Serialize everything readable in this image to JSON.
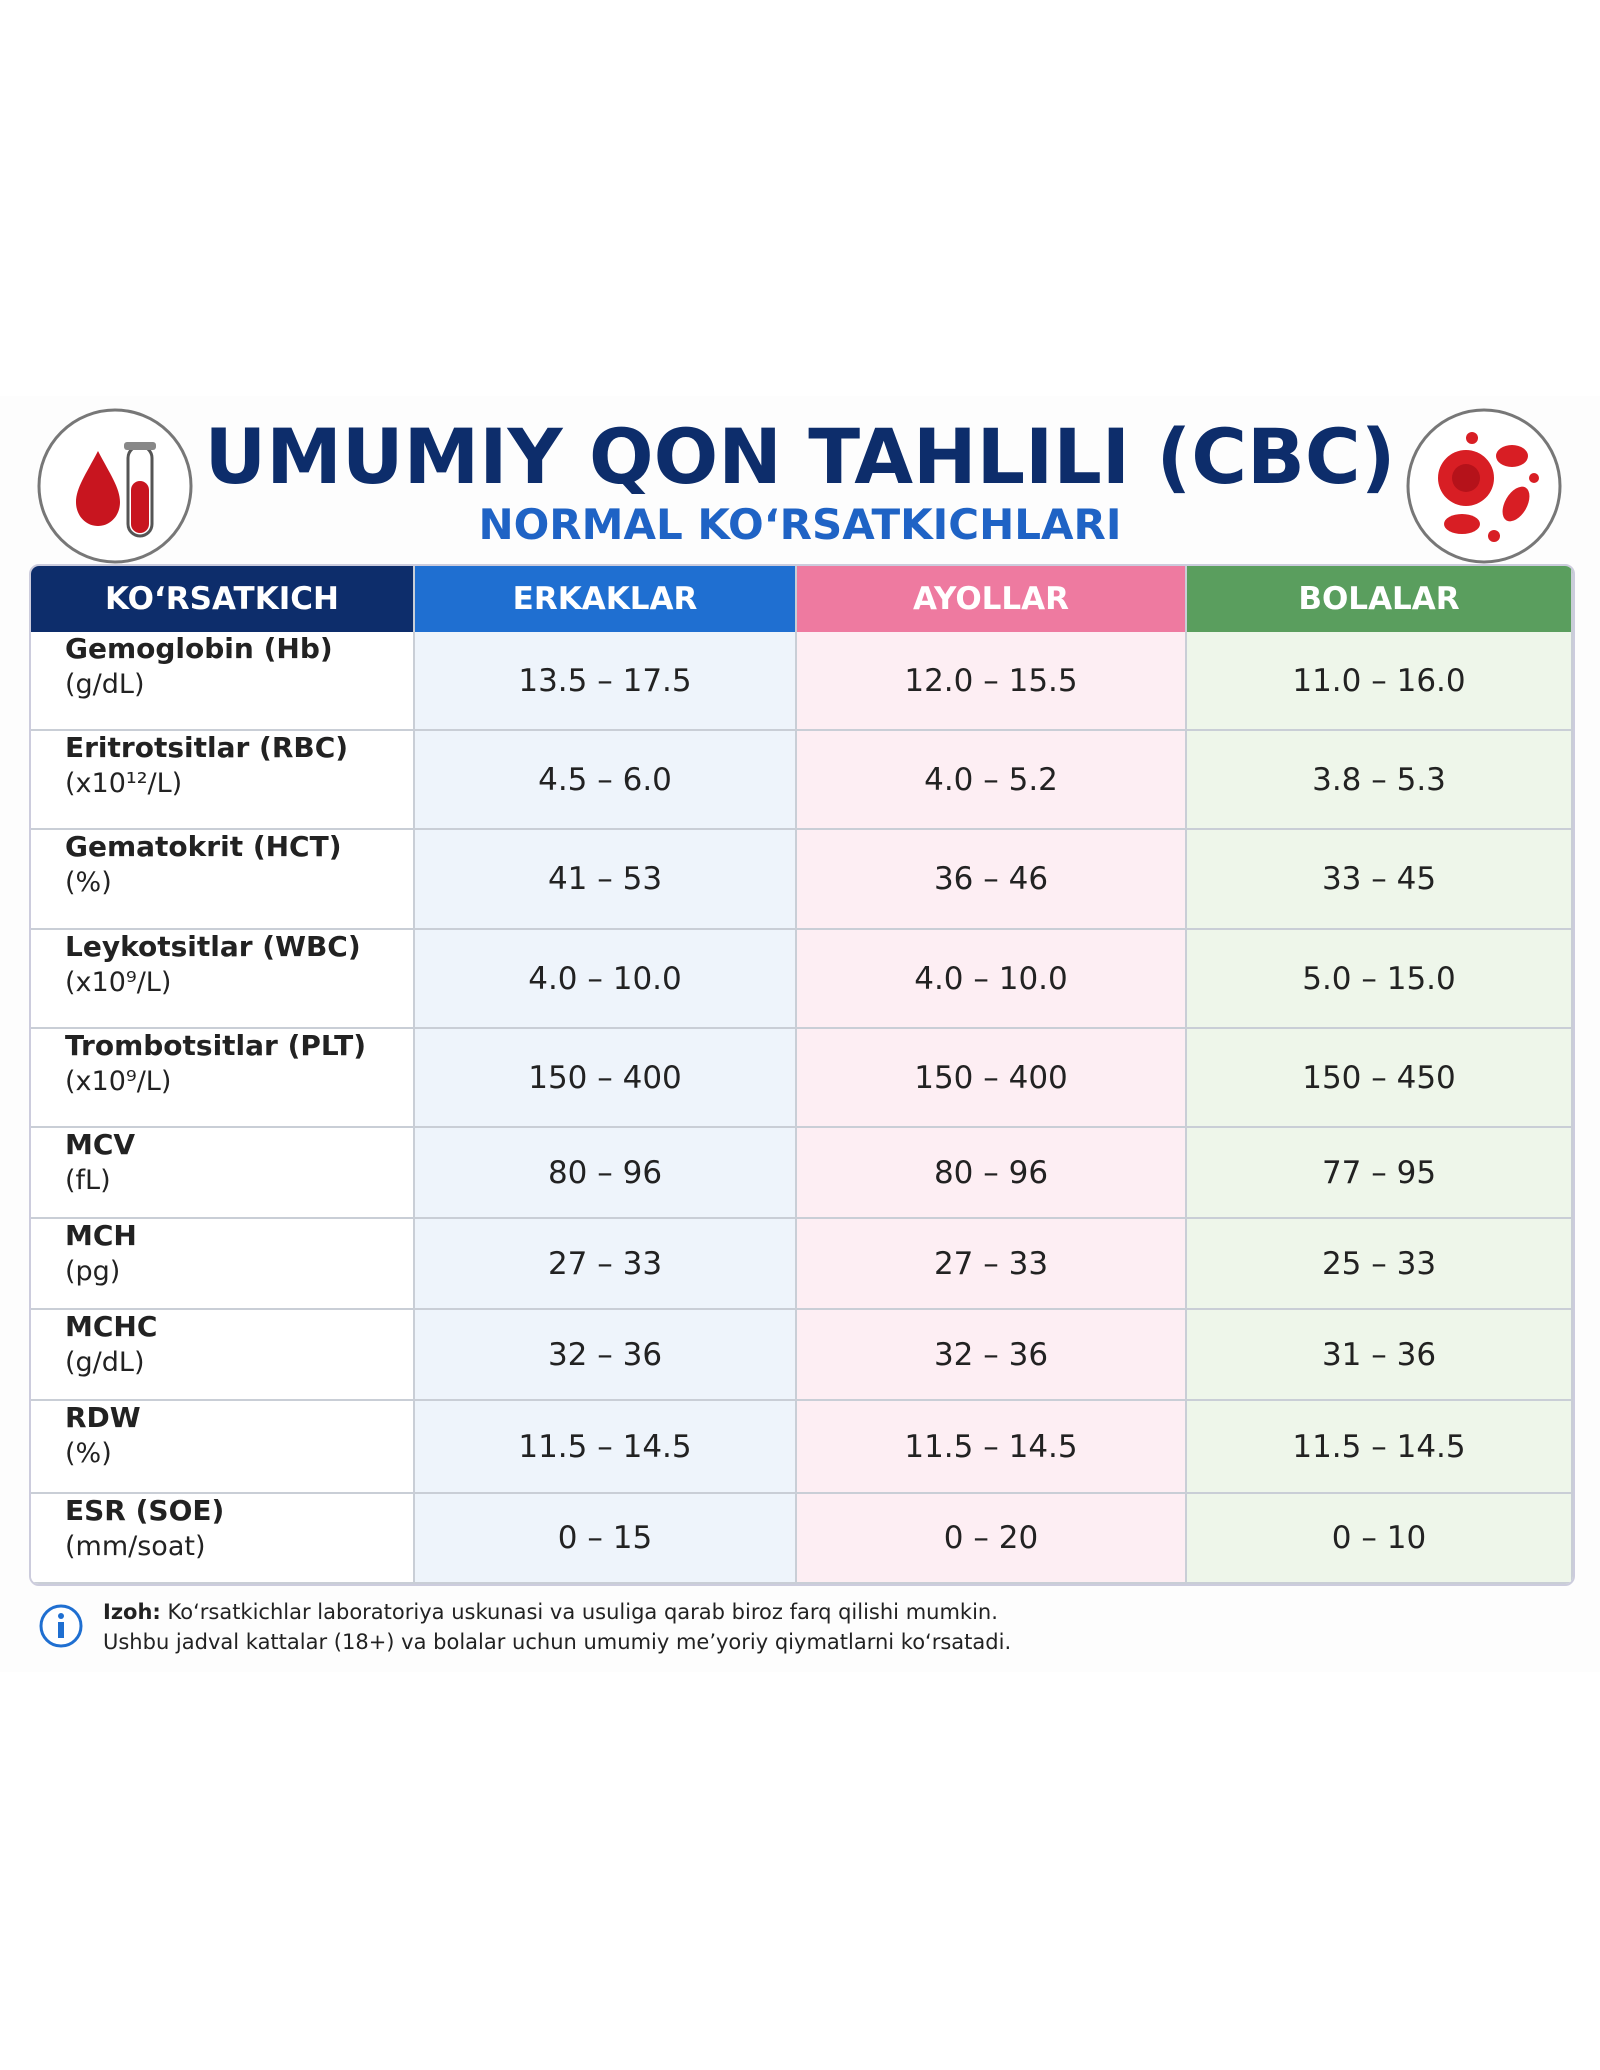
{
  "header": {
    "title": "UMUMIY QON TAHLILI (CBC)",
    "subtitle": "NORMAL KO‘RSATKICHLARI"
  },
  "table": {
    "columns": [
      "KO‘RSATKICH",
      "ERKAKLAR",
      "AYOLLAR",
      "BOLALAR"
    ],
    "rows": [
      [
        "Gemoglobin (Hb)",
        "(g/dL)",
        "13.5 – 17.5",
        "12.0 – 15.5",
        "11.0 – 16.0"
      ],
      [
        "Eritrotsitlar (RBC)",
        "(x10¹²/L)",
        "4.5 – 6.0",
        "4.0 – 5.2",
        "3.8 – 5.3"
      ],
      [
        "Gematokrit (HCT)",
        "(%)",
        "41 – 53",
        "36 – 46",
        "33 – 45"
      ],
      [
        "Leykotsitlar (WBC)",
        "(x10⁹/L)",
        "4.0 – 10.0",
        "4.0 – 10.0",
        "5.0 – 15.0"
      ],
      [
        "Trombotsitlar (PLT)",
        "(x10⁹/L)",
        "150 – 400",
        "150 – 400",
        "150 – 450"
      ],
      [
        "MCV",
        "(fL)",
        "80 – 96",
        "80 – 96",
        "77 – 95"
      ],
      [
        "MCH",
        "(pg)",
        "27 – 33",
        "27 – 33",
        "25 – 33"
      ],
      [
        "MCHC",
        "(g/dL)",
        "32 – 36",
        "32 – 36",
        "31 – 36"
      ],
      [
        "RDW",
        "(%)",
        "11.5 – 14.5",
        "11.5 – 14.5",
        "11.5 – 14.5"
      ],
      [
        "ESR (SOE)",
        "(mm/soat)",
        "0 – 15",
        "0 – 20",
        "0 – 10"
      ]
    ]
  },
  "note": {
    "label": "Izoh:",
    "lines": [
      "Ko‘rsatkichlar laboratoriya uskunasi va usuliga qarab biroz farq qilishi mumkin.",
      "Ushbu jadval kattalar (18+) va bolalar uchun umumiy me’yoriy qiymatlarni ko‘rsatadi."
    ]
  }
}
